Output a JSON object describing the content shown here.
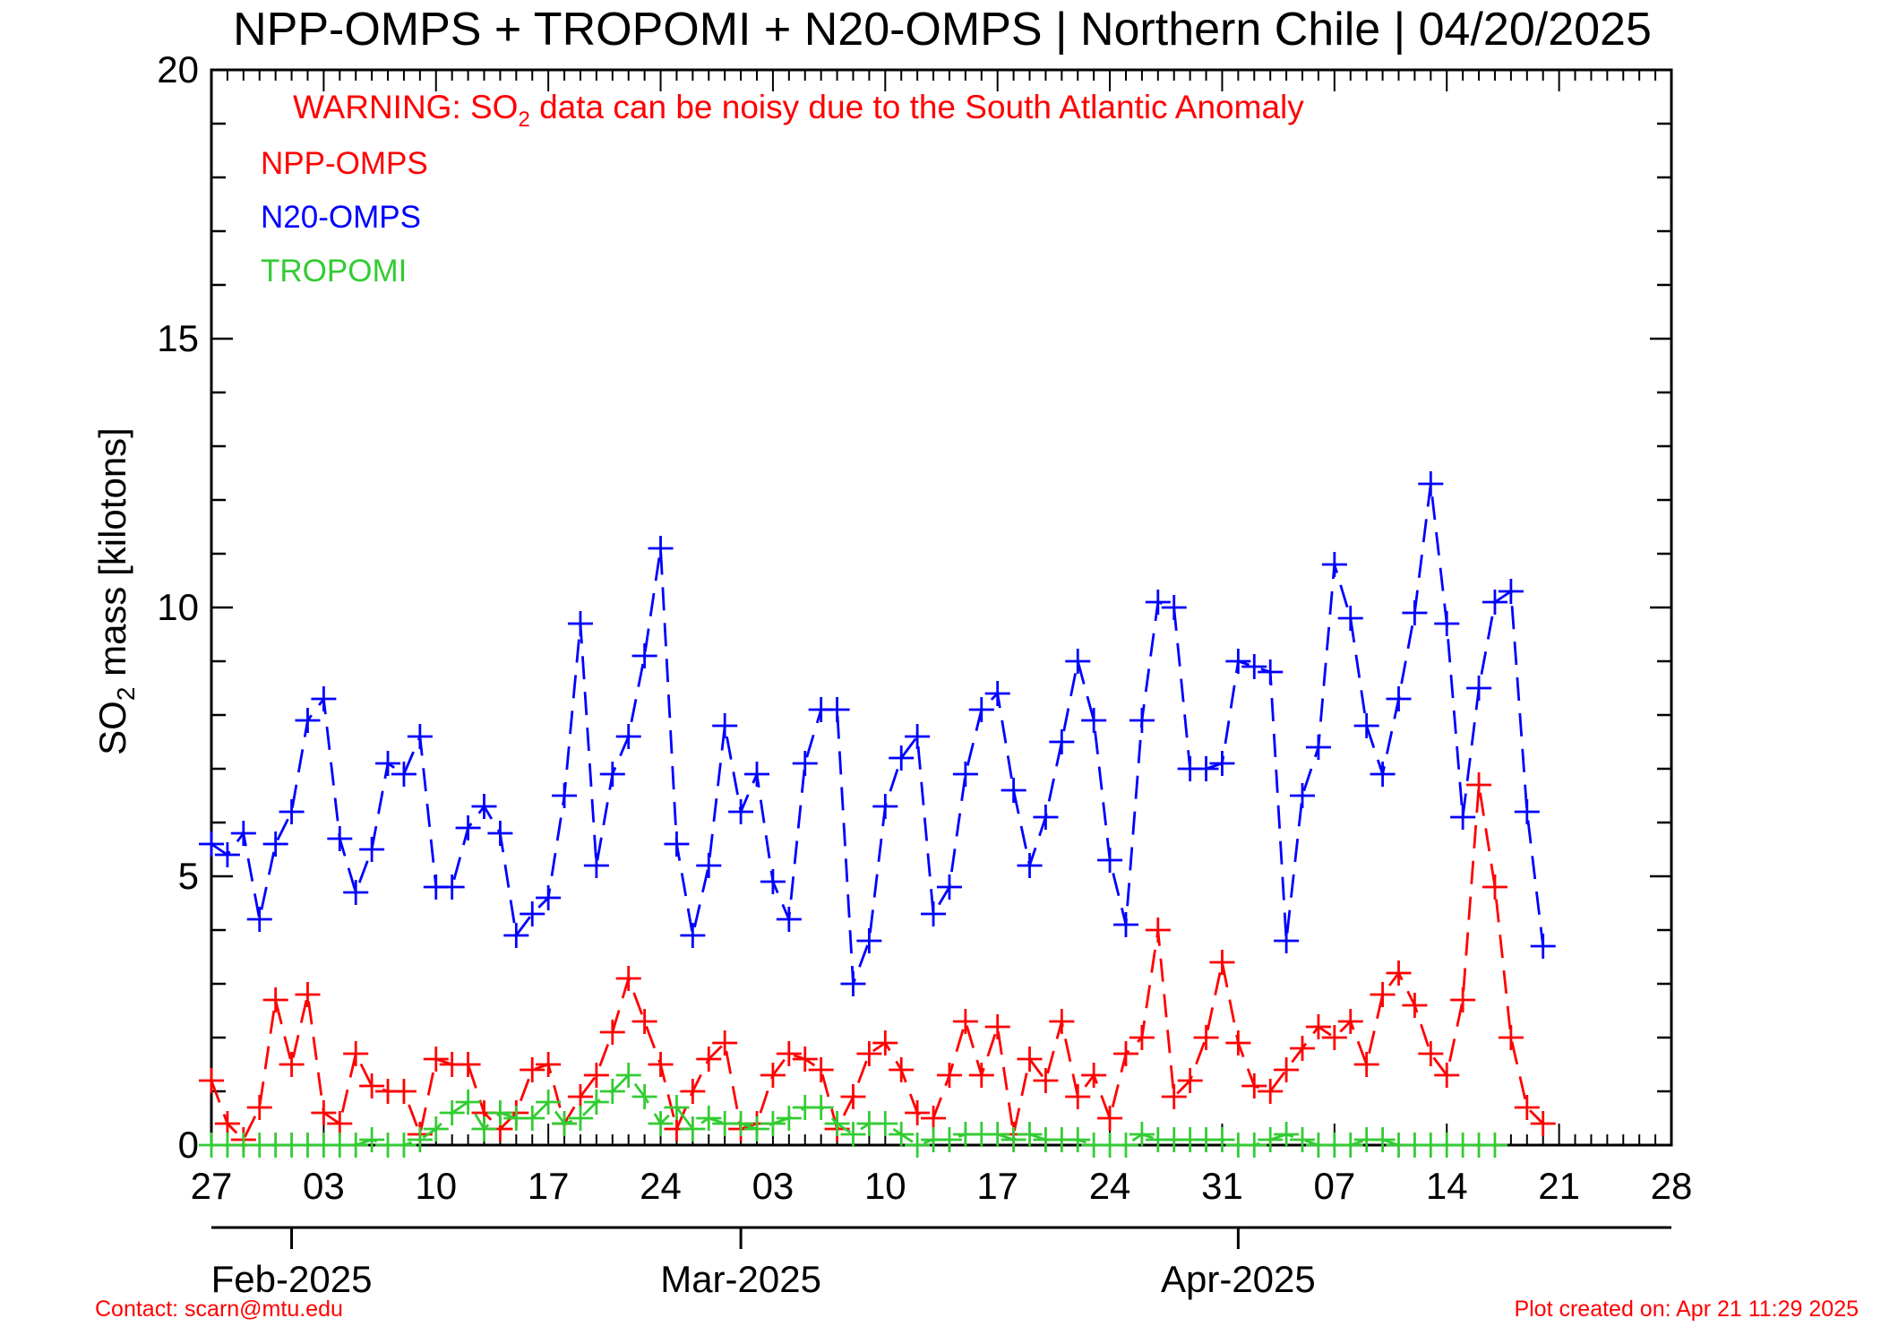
{
  "chart_data": {
    "type": "line",
    "title": "NPP-OMPS + TROPOMI + N20-OMPS | Northern Chile | 04/20/2025",
    "ylabel_prefix": "SO",
    "ylabel_sub": "2",
    "ylabel_suffix": " mass [kilotons]",
    "ylim": [
      0,
      20
    ],
    "yticks": [
      "0",
      "5",
      "10",
      "15",
      "20"
    ],
    "x_range": [
      "2025-01-27",
      "2025-04-28"
    ],
    "xticks": [
      "27",
      "03",
      "10",
      "17",
      "24",
      "03",
      "10",
      "17",
      "24",
      "31",
      "07",
      "14",
      "21",
      "28"
    ],
    "months": [
      "Feb-2025",
      "Mar-2025",
      "Apr-2025"
    ],
    "warning": {
      "before": "WARNING: SO",
      "sub": "2",
      "after": " data can be noisy due to the South Atlantic Anomaly",
      "color": "#ff0000"
    },
    "series": [
      {
        "name": "NPP-OMPS",
        "color": "#ff0000",
        "start": "2025-01-27",
        "values": [
          1.2,
          0.4,
          0.1,
          0.7,
          2.7,
          1.5,
          2.8,
          0.6,
          0.4,
          1.7,
          1.1,
          1.0,
          1.0,
          0.2,
          1.6,
          1.5,
          1.5,
          0.6,
          0.3,
          0.6,
          1.4,
          1.5,
          0.4,
          0.9,
          1.3,
          2.1,
          3.1,
          2.3,
          1.5,
          0.3,
          1.0,
          1.6,
          1.9,
          0.3,
          0.4,
          1.3,
          1.7,
          1.6,
          1.4,
          0.3,
          0.9,
          1.7,
          1.9,
          1.4,
          0.6,
          0.5,
          1.3,
          2.3,
          1.3,
          2.2,
          0.2,
          1.6,
          1.2,
          2.3,
          0.9,
          1.3,
          0.5,
          1.7,
          2.0,
          4.0,
          0.9,
          1.2,
          2.0,
          3.4,
          1.9,
          1.1,
          1.0,
          1.4,
          1.8,
          2.2,
          2.0,
          2.3,
          1.5,
          2.8,
          3.2,
          2.6,
          1.7,
          1.3,
          2.7,
          6.7,
          4.8,
          2.0,
          0.7,
          0.4
        ]
      },
      {
        "name": "N20-OMPS",
        "color": "#0000ff",
        "start": "2025-01-27",
        "values": [
          5.6,
          5.4,
          5.8,
          4.2,
          5.6,
          6.2,
          7.9,
          8.3,
          5.7,
          4.7,
          5.5,
          7.1,
          6.9,
          7.6,
          4.8,
          4.8,
          5.9,
          6.3,
          5.8,
          3.9,
          4.3,
          4.6,
          6.5,
          9.7,
          5.2,
          6.9,
          7.6,
          9.1,
          11.1,
          5.6,
          3.9,
          5.2,
          7.8,
          6.2,
          6.9,
          4.9,
          4.2,
          7.1,
          8.1,
          8.1,
          3.0,
          3.8,
          6.3,
          7.2,
          7.6,
          4.3,
          4.8,
          6.9,
          8.1,
          8.4,
          6.6,
          5.2,
          6.1,
          7.5,
          9.0,
          7.9,
          5.3,
          4.1,
          7.9,
          10.1,
          10.0,
          7.0,
          7.0,
          7.1,
          9.0,
          8.9,
          8.8,
          3.8,
          6.5,
          7.4,
          10.8,
          9.8,
          7.8,
          6.9,
          8.3,
          9.9,
          12.3,
          9.7,
          6.1,
          8.5,
          10.1,
          10.3,
          6.2,
          3.7
        ]
      },
      {
        "name": "TROPOMI",
        "color": "#33cc33",
        "start": "2025-01-27",
        "values": [
          0.0,
          0.0,
          0.0,
          0.0,
          0.0,
          0.0,
          0.0,
          0.0,
          0.0,
          0.0,
          0.1,
          0.0,
          0.0,
          0.1,
          0.3,
          0.6,
          0.8,
          0.3,
          0.6,
          0.5,
          0.5,
          0.8,
          0.4,
          0.5,
          0.8,
          1.0,
          1.3,
          0.9,
          0.4,
          0.7,
          0.3,
          0.5,
          0.4,
          0.4,
          0.3,
          0.4,
          0.5,
          0.7,
          0.7,
          0.4,
          0.2,
          0.4,
          0.4,
          0.2,
          0.0,
          0.1,
          0.1,
          0.2,
          0.2,
          0.2,
          0.1,
          0.2,
          0.1,
          0.1,
          0.1,
          0.0,
          0.0,
          0.0,
          0.2,
          0.1,
          0.1,
          0.1,
          0.1,
          0.1,
          0.0,
          0.0,
          0.1,
          0.2,
          0.1,
          0.0,
          0.0,
          0.0,
          0.1,
          0.1,
          0.0,
          0.0,
          0.0,
          0.0,
          0.0,
          0.0,
          0.0
        ]
      }
    ]
  },
  "footer": {
    "contact": "Contact: scarn@mtu.edu",
    "created": "Plot created on: Apr 21 11:29 2025",
    "color": "#ff0000"
  }
}
